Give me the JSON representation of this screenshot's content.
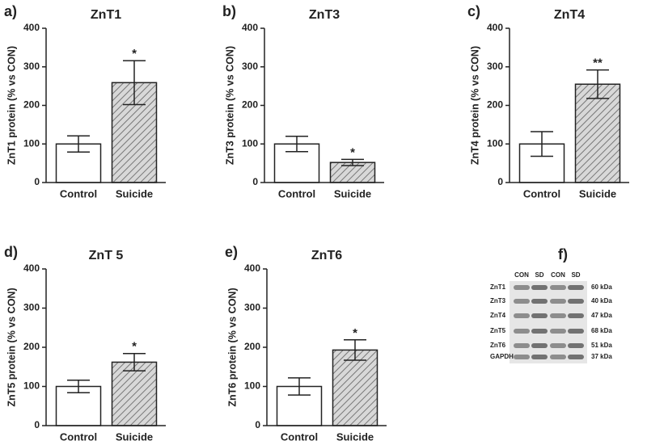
{
  "chart_data": [
    {
      "type": "bar",
      "panel": "a)",
      "title": "ZnT1",
      "ylabel": "ZnT1 protein (% vs CON)",
      "categories": [
        "Control",
        "Suicide"
      ],
      "values": [
        100,
        259
      ],
      "errors": [
        21,
        57
      ],
      "hatch": [
        false,
        true
      ],
      "color": "#ffffff",
      "hatch_color": "#a0a0a0",
      "annotations": [
        {
          "x": "Suicide",
          "text": "*"
        }
      ],
      "ylim": [
        0,
        400
      ],
      "yticks": [
        0,
        100,
        200,
        300,
        400
      ]
    },
    {
      "type": "bar",
      "panel": "b)",
      "title": "ZnT3",
      "ylabel": "ZnT3 protein (% vs CON)",
      "categories": [
        "Control",
        "Suicide"
      ],
      "values": [
        100,
        52
      ],
      "errors": [
        20,
        8
      ],
      "hatch": [
        false,
        true
      ],
      "color": "#ffffff",
      "hatch_color": "#a0a0a0",
      "annotations": [
        {
          "x": "Suicide",
          "text": "*"
        }
      ],
      "ylim": [
        0,
        400
      ],
      "yticks": [
        0,
        100,
        200,
        300,
        400
      ]
    },
    {
      "type": "bar",
      "panel": "c)",
      "title": "ZnT4",
      "ylabel": "ZnT4 protein (% vs CON)",
      "categories": [
        "Control",
        "Suicide"
      ],
      "values": [
        100,
        255
      ],
      "errors": [
        32,
        37
      ],
      "hatch": [
        false,
        true
      ],
      "color": "#ffffff",
      "hatch_color": "#a0a0a0",
      "annotations": [
        {
          "x": "Suicide",
          "text": "**"
        }
      ],
      "ylim": [
        0,
        400
      ],
      "yticks": [
        0,
        100,
        200,
        300,
        400
      ]
    },
    {
      "type": "bar",
      "panel": "d)",
      "title": "ZnT 5",
      "ylabel": "ZnT5 protein (% vs CON)",
      "categories": [
        "Control",
        "Suicide"
      ],
      "values": [
        100,
        162
      ],
      "errors": [
        16,
        22
      ],
      "hatch": [
        false,
        true
      ],
      "color": "#ffffff",
      "hatch_color": "#a0a0a0",
      "annotations": [
        {
          "x": "Suicide",
          "text": "*"
        }
      ],
      "ylim": [
        0,
        400
      ],
      "yticks": [
        0,
        100,
        200,
        300,
        400
      ]
    },
    {
      "type": "bar",
      "panel": "e)",
      "title": "ZnT6",
      "ylabel": "ZnT6 protein (% vs CON)",
      "categories": [
        "Control",
        "Suicide"
      ],
      "values": [
        100,
        193
      ],
      "errors": [
        22,
        26
      ],
      "hatch": [
        false,
        true
      ],
      "color": "#ffffff",
      "hatch_color": "#a0a0a0",
      "annotations": [
        {
          "x": "Suicide",
          "text": "*"
        }
      ],
      "ylim": [
        0,
        400
      ],
      "yticks": [
        0,
        100,
        200,
        300,
        400
      ]
    }
  ],
  "blot": {
    "panel": "f)",
    "lanes": [
      "CON",
      "SD",
      "CON",
      "SD"
    ],
    "rows": [
      "ZnT1",
      "ZnT3",
      "ZnT4",
      "ZnT5",
      "ZnT6",
      "GAPDH"
    ],
    "sizes": [
      "60 kDa",
      "40 kDa",
      "47 kDa",
      "68 kDa",
      "51 kDa",
      "37 kDa"
    ]
  }
}
